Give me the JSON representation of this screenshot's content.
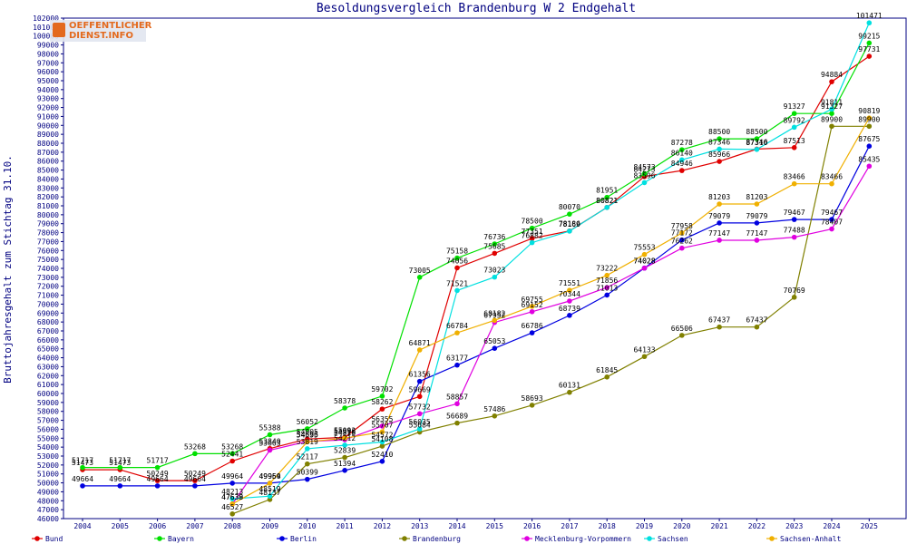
{
  "chart_data": {
    "type": "line",
    "title": "Besoldungsvergleich Brandenburg W 2 Endgehalt",
    "xlabel": "",
    "ylabel": "Bruttojahresgehalt zum Stichtag 31.10.",
    "categories": [
      "2004",
      "2005",
      "2006",
      "2007",
      "2008",
      "2009",
      "2010",
      "2011",
      "2012",
      "2013",
      "2014",
      "2015",
      "2016",
      "2017",
      "2018",
      "2019",
      "2020",
      "2021",
      "2022",
      "2023",
      "2024",
      "2025"
    ],
    "ylim": [
      46000,
      102000
    ],
    "ytick_step": 1000,
    "legend_position": "bottom",
    "series": [
      {
        "name": "Bund",
        "color": "#e00000",
        "values": [
          51473,
          51473,
          50249,
          50249,
          52441,
          53840,
          54905,
          55092,
          58262,
          59669,
          74056,
          75685,
          77351,
          78186,
          80821,
          84273,
          84946,
          85966,
          87346,
          87513,
          94884,
          97731
        ]
      },
      {
        "name": "Bayern",
        "color": "#00e000",
        "values": [
          51717,
          51717,
          51717,
          53268,
          53268,
          55388,
          56052,
          58378,
          59702,
          73005,
          75158,
          76736,
          78500,
          80070,
          81951,
          84573,
          87278,
          88500,
          88500,
          91327,
          91327,
          99215
        ]
      },
      {
        "name": "Berlin",
        "color": "#0000e0",
        "values": [
          49664,
          49664,
          49664,
          49664,
          49964,
          49964,
          50399,
          51394,
          52410,
          61356,
          63177,
          65053,
          66786,
          68739,
          71013,
          74028,
          77172,
          79079,
          79079,
          79467,
          79467,
          87675
        ]
      },
      {
        "name": "Brandenburg",
        "color": "#808000",
        "values": [
          null,
          null,
          null,
          null,
          46527,
          48137,
          52117,
          52839,
          54108,
          55684,
          56689,
          57486,
          58693,
          60131,
          61845,
          64133,
          66506,
          67437,
          67437,
          70769,
          89900,
          89900
        ]
      },
      {
        "name": "Mecklenburg-Vorpommern",
        "color": "#e000e0",
        "values": [
          null,
          null,
          null,
          null,
          47638,
          53663,
          54636,
          54818,
          56355,
          57732,
          58857,
          67952,
          69152,
          70344,
          71856,
          74028,
          76262,
          77147,
          77147,
          77488,
          78407,
          85435
        ]
      },
      {
        "name": "Sachsen",
        "color": "#00e0e0",
        "values": [
          null,
          null,
          null,
          null,
          48213,
          48519,
          53819,
          54212,
          54572,
          56035,
          71521,
          73023,
          76882,
          78169,
          80821,
          83596,
          86140,
          87346,
          87310,
          89792,
          91811,
          101471
        ]
      },
      {
        "name": "Sachsen-Anhalt",
        "color": "#f0b000",
        "values": [
          null,
          null,
          null,
          null,
          47639,
          49959,
          54595,
          54996,
          55707,
          64871,
          66784,
          68182,
          69755,
          71551,
          73222,
          75553,
          77958,
          81203,
          81203,
          83466,
          83466,
          90819
        ]
      }
    ]
  },
  "watermark": {
    "line1": "OEFFENTLICHER",
    "line2": "DIENST.INFO"
  }
}
